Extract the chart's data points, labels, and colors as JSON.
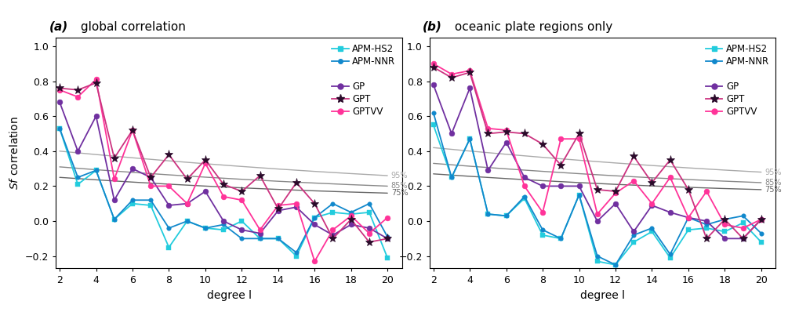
{
  "degrees": [
    2,
    3,
    4,
    5,
    6,
    7,
    8,
    9,
    10,
    11,
    12,
    13,
    14,
    15,
    16,
    17,
    18,
    19,
    20
  ],
  "panel_a": {
    "title_bold": "(a)",
    "title_rest": " global correlation",
    "APM_HS2": [
      0.53,
      0.21,
      0.29,
      0.01,
      0.1,
      0.09,
      -0.15,
      0.0,
      -0.04,
      -0.05,
      0.0,
      -0.1,
      -0.1,
      -0.2,
      0.02,
      0.05,
      0.04,
      0.05,
      -0.21
    ],
    "APM_NNR": [
      0.53,
      0.25,
      0.29,
      0.01,
      0.12,
      0.12,
      -0.04,
      0.0,
      -0.04,
      -0.02,
      -0.1,
      -0.1,
      -0.1,
      -0.18,
      0.02,
      0.1,
      0.05,
      0.1,
      -0.09
    ],
    "GP": [
      0.68,
      0.4,
      0.6,
      0.12,
      0.3,
      0.25,
      0.09,
      0.1,
      0.17,
      0.0,
      -0.05,
      -0.07,
      0.06,
      0.08,
      -0.02,
      -0.08,
      -0.02,
      -0.04,
      -0.1
    ],
    "GPT": [
      0.76,
      0.75,
      0.79,
      0.36,
      0.52,
      0.25,
      0.38,
      0.24,
      0.35,
      0.21,
      0.17,
      0.26,
      0.07,
      0.22,
      0.1,
      -0.1,
      0.01,
      -0.12,
      -0.1
    ],
    "GPTVV": [
      0.75,
      0.71,
      0.81,
      0.24,
      0.52,
      0.2,
      0.2,
      0.1,
      0.33,
      0.14,
      0.12,
      -0.05,
      0.09,
      0.1,
      -0.23,
      -0.05,
      0.03,
      -0.07,
      0.02
    ],
    "conf95": [
      0.4,
      0.26
    ],
    "conf85": [
      0.31,
      0.2
    ],
    "conf75": [
      0.25,
      0.16
    ]
  },
  "panel_b": {
    "title_bold": "(b)",
    "title_rest": " oceanic plate regions only",
    "APM_HS2": [
      0.55,
      0.25,
      0.47,
      0.04,
      0.03,
      0.13,
      -0.08,
      -0.1,
      0.15,
      -0.23,
      -0.25,
      -0.12,
      -0.06,
      -0.21,
      -0.05,
      -0.04,
      -0.06,
      -0.01,
      -0.12
    ],
    "APM_NNR": [
      0.62,
      0.25,
      0.47,
      0.04,
      0.03,
      0.14,
      -0.05,
      -0.1,
      0.15,
      -0.2,
      -0.25,
      -0.08,
      -0.04,
      -0.19,
      0.02,
      -0.02,
      0.01,
      0.03,
      -0.07
    ],
    "GP": [
      0.78,
      0.5,
      0.76,
      0.29,
      0.45,
      0.25,
      0.2,
      0.2,
      0.2,
      0.0,
      0.1,
      -0.06,
      0.09,
      0.05,
      0.02,
      0.0,
      -0.1,
      -0.1,
      0.01
    ],
    "GPT": [
      0.88,
      0.82,
      0.85,
      0.5,
      0.51,
      0.5,
      0.44,
      0.32,
      0.5,
      0.18,
      0.17,
      0.37,
      0.22,
      0.35,
      0.18,
      -0.1,
      0.01,
      -0.1,
      0.01
    ],
    "GPTVV": [
      0.9,
      0.84,
      0.86,
      0.53,
      0.52,
      0.2,
      0.05,
      0.47,
      0.47,
      0.04,
      0.16,
      0.23,
      0.1,
      0.25,
      0.02,
      0.17,
      -0.02,
      -0.04,
      0.01
    ],
    "conf95": [
      0.42,
      0.28
    ],
    "conf85": [
      0.33,
      0.22
    ],
    "conf75": [
      0.27,
      0.18
    ]
  },
  "color_hs2": "#22ccdd",
  "color_nnr": "#1188cc",
  "color_gp": "#7030a0",
  "color_gpt_line": "#cc3380",
  "color_gpt_marker": "#2a0a2a",
  "color_gptvv": "#ff3399",
  "ylabel": "$\\it{S}$$f$ correlation",
  "xlabel": "degree l",
  "ylim": [
    -0.27,
    1.05
  ],
  "yticks": [
    -0.2,
    0.0,
    0.2,
    0.4,
    0.6,
    0.8,
    1.0
  ],
  "xticks": [
    2,
    4,
    6,
    8,
    10,
    12,
    14,
    16,
    18,
    20
  ],
  "conf_labels": [
    "95%",
    "85%",
    "75%"
  ]
}
